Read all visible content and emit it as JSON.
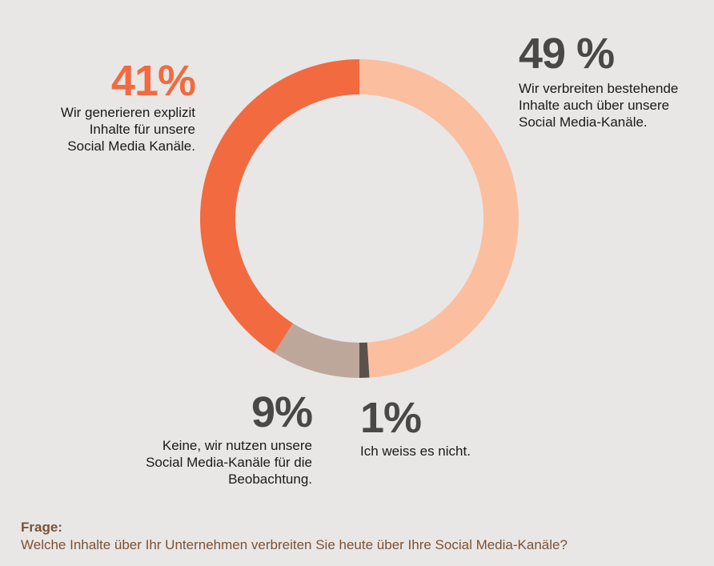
{
  "chart_data": {
    "type": "pie",
    "variant": "donut",
    "start": "top",
    "direction": "clockwise",
    "slices": [
      {
        "label": "Wir verbreiten bestehende Inhalte auch über unsere Social Media-Kanäle.",
        "value": 49,
        "value_label": "49%",
        "color": "#fbbf9f"
      },
      {
        "label": "Ich weiss es nicht.",
        "value": 1,
        "value_label": "1%",
        "color": "#5b514a"
      },
      {
        "label": "Keine, wir nutzen unsere Social Media-Kanäle für die Beobachtung.",
        "value": 9,
        "value_label": "9%",
        "color": "#bda79b"
      },
      {
        "label": "Wir generieren explizit Inhalte für unsere Social Media Kanäle.",
        "value": 41,
        "value_label": "41%",
        "color": "#f26a3f"
      }
    ]
  },
  "labels": {
    "s49": {
      "pct": "49 %",
      "lines": [
        "Wir verbreiten bestehende",
        "Inhalte auch über unsere",
        "Social Media-Kanäle."
      ]
    },
    "s41": {
      "pct": "41%",
      "lines": [
        "Wir generieren explizit",
        "Inhalte für unsere",
        "Social Media Kanäle."
      ]
    },
    "s9": {
      "pct": "9%",
      "lines": [
        "Keine, wir nutzen unsere",
        "Social Media-Kanäle für die",
        "Beobachtung."
      ]
    },
    "s1": {
      "pct": "1%",
      "lines": [
        "Ich weiss es nicht."
      ]
    }
  },
  "question": {
    "label": "Frage:",
    "text": "Welche Inhalte über Ihr Unternehmen verbreiten Sie heute über Ihre Social Media-Kanäle?"
  }
}
